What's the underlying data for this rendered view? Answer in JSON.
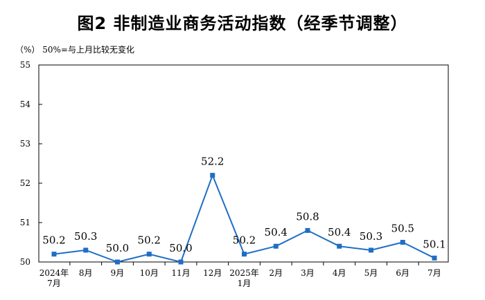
{
  "title": "图2  非制造业商务活动指数（经季节调整）",
  "unit_note": "（%）  50%=与上月比较无变化",
  "colors": {
    "line": "#1f6ec5",
    "axis": "#000000"
  },
  "chart_data": {
    "type": "line",
    "title": "图2  非制造业商务活动指数（经季节调整）",
    "ylim": [
      50,
      55
    ],
    "y_ticks": [
      "55",
      "54",
      "53",
      "52",
      "51",
      "50"
    ],
    "x": [
      [
        "2024年",
        "7月"
      ],
      [
        "8月"
      ],
      [
        "9月"
      ],
      [
        "10月"
      ],
      [
        "11月"
      ],
      [
        "12月"
      ],
      [
        "2025年",
        "1月"
      ],
      [
        "2月"
      ],
      [
        "3月"
      ],
      [
        "4月"
      ],
      [
        "5月"
      ],
      [
        "6月"
      ],
      [
        "7月"
      ]
    ],
    "series": [
      {
        "values": [
          50.2,
          50.3,
          50.0,
          50.2,
          50.0,
          52.2,
          50.2,
          50.4,
          50.8,
          50.4,
          50.3,
          50.5,
          50.1
        ],
        "labels": [
          "50.2",
          "50.3",
          "50.0",
          "50.2",
          "50.0",
          "52.2",
          "50.2",
          "50.4",
          "50.8",
          "50.4",
          "50.3",
          "50.5",
          "50.1"
        ]
      }
    ],
    "grid": false,
    "legend": "none"
  }
}
